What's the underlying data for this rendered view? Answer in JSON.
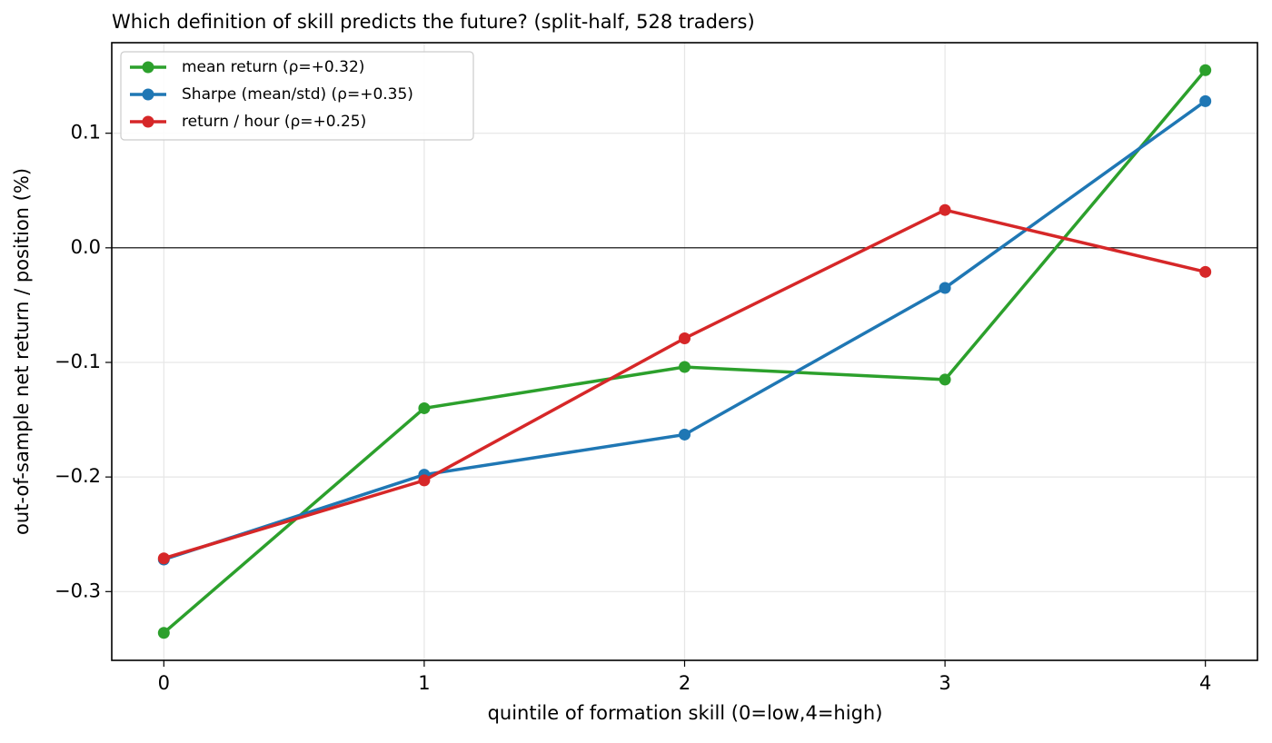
{
  "chart_data": {
    "type": "line",
    "title": "Which definition of skill predicts the future? (split-half, 528 traders)",
    "x_label": "quintile of formation skill (0=low,4=high)",
    "y_label": "out-of-sample net return / position (%)",
    "x": [
      0,
      1,
      2,
      3,
      4
    ],
    "series": [
      {
        "name": "mean return (ρ=+0.32)",
        "color": "#2ca02c",
        "values": [
          -0.336,
          -0.14,
          -0.104,
          -0.115,
          0.155
        ]
      },
      {
        "name": "Sharpe (mean/std) (ρ=+0.35)",
        "color": "#1f77b4",
        "values": [
          -0.272,
          -0.198,
          -0.163,
          -0.035,
          0.128
        ]
      },
      {
        "name": "return / hour (ρ=+0.25)",
        "color": "#d62728",
        "values": [
          -0.271,
          -0.203,
          -0.079,
          0.033,
          -0.021
        ]
      }
    ],
    "xlim": [
      -0.2,
      4.2
    ],
    "xticks": [
      0,
      1,
      2,
      3,
      4
    ],
    "ylim": [
      -0.36,
      0.179
    ],
    "yticks": [
      {
        "value": -0.3,
        "label": "−0.3"
      },
      {
        "value": -0.2,
        "label": "−0.2"
      },
      {
        "value": -0.1,
        "label": "−0.1"
      },
      {
        "value": 0,
        "label": "0.0"
      },
      0.1
    ],
    "hline": 0,
    "grid": true,
    "legend": "upper-left"
  }
}
